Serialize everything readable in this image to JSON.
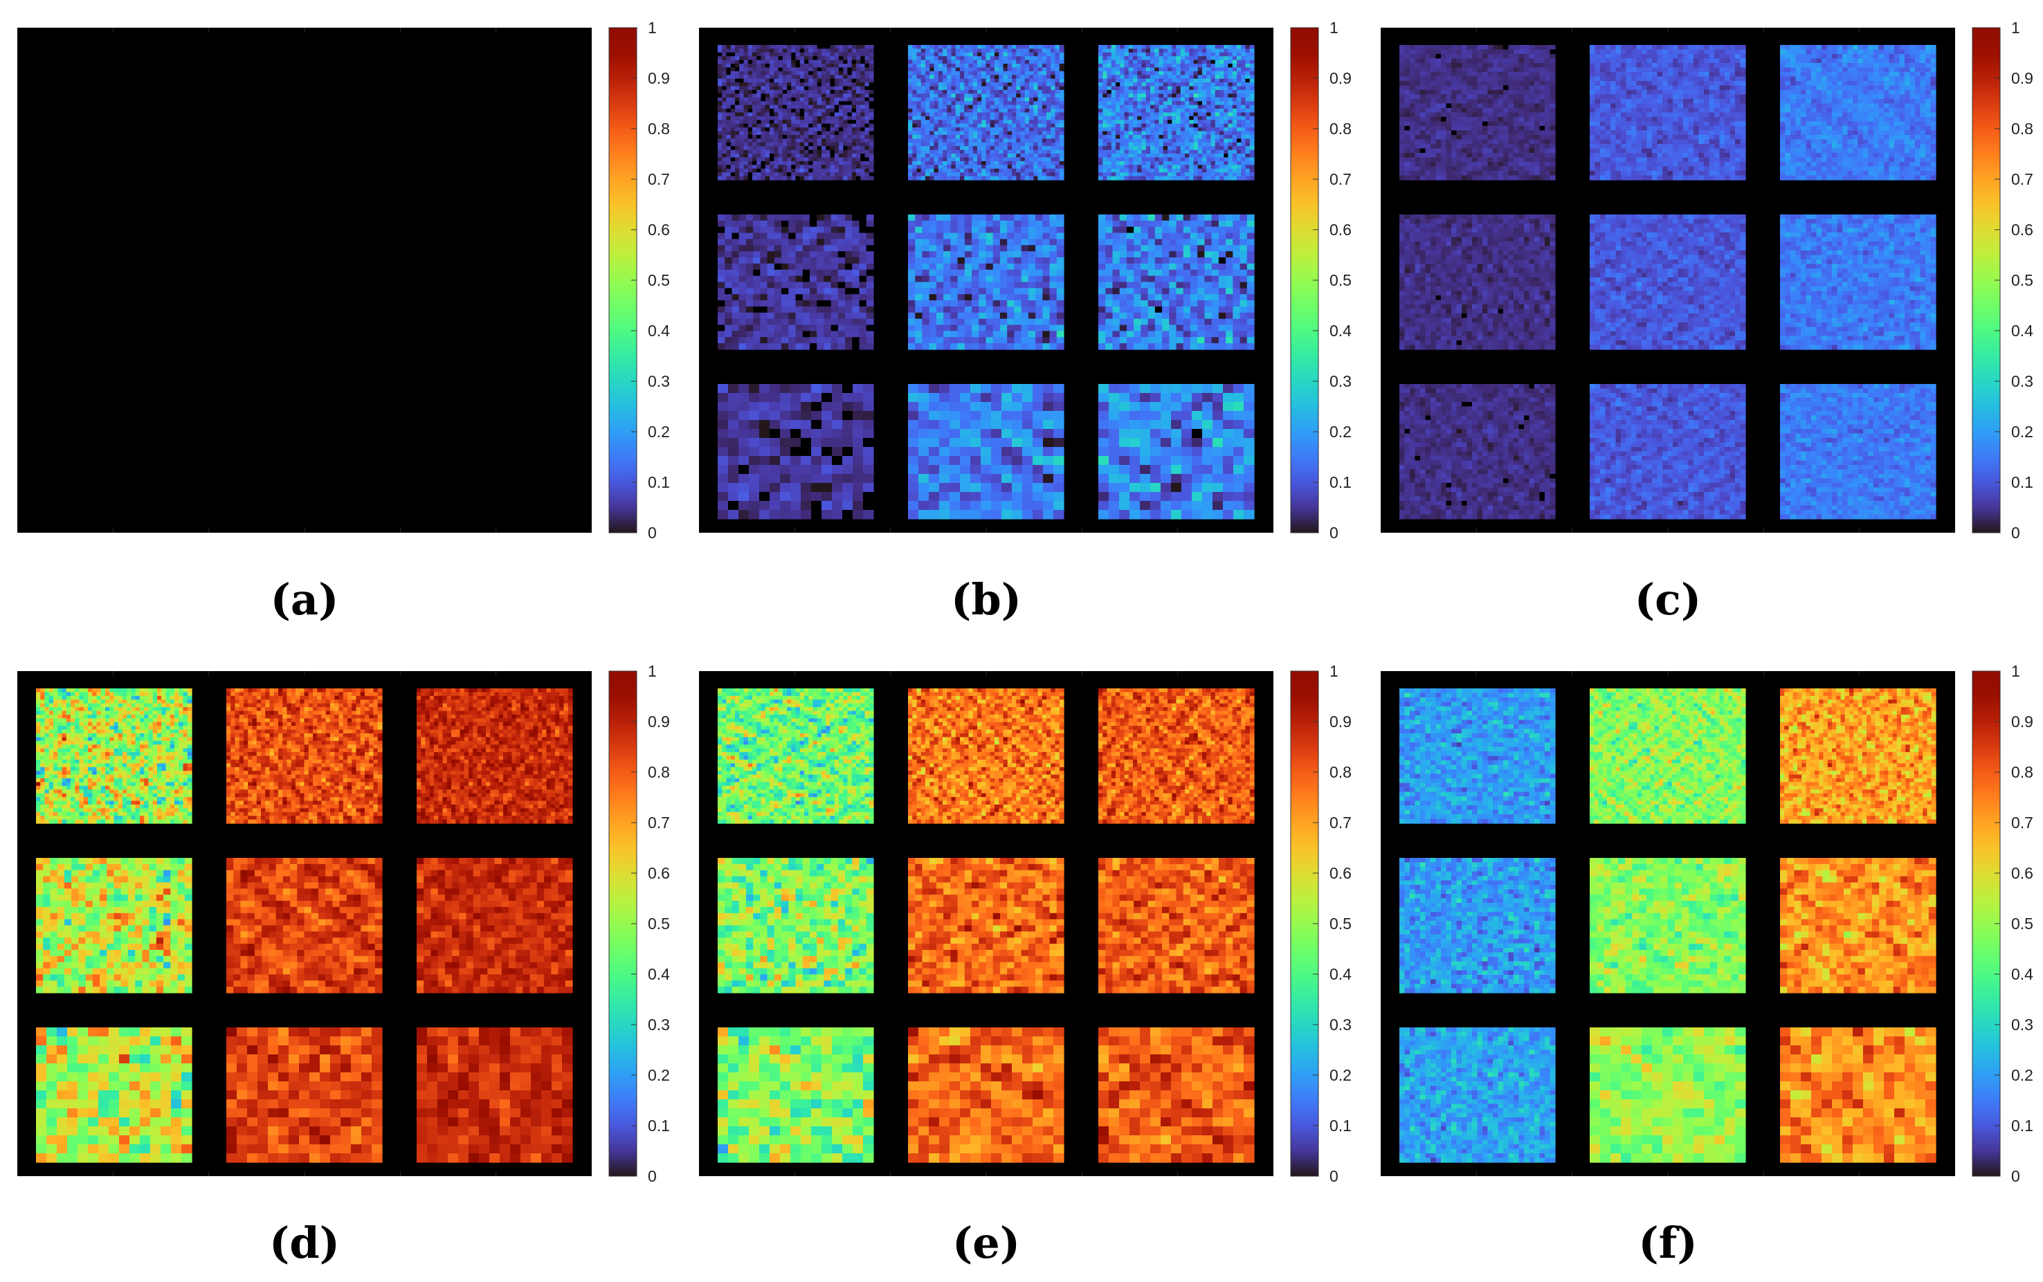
{
  "colorbar": {
    "ticks": [
      "0",
      "0.1",
      "0.2",
      "0.3",
      "0.4",
      "0.5",
      "0.6",
      "0.7",
      "0.8",
      "0.9",
      "1"
    ],
    "range": [
      0,
      1
    ],
    "colormap": "turbo"
  },
  "chart_data": [
    {
      "type": "heatmap",
      "caption": "(a)",
      "grid": false,
      "tiles": [],
      "colorbar_range": [
        0,
        1
      ]
    },
    {
      "type": "heatmap",
      "caption": "(b)",
      "grid": false,
      "tiles": [
        [
          {
            "mean": 0.04,
            "spread": 0.04,
            "texture": "speckle",
            "holes": 0.35
          },
          {
            "mean": 0.13,
            "spread": 0.1,
            "texture": "speckle",
            "holes": 0.0
          },
          {
            "mean": 0.15,
            "spread": 0.11,
            "texture": "speckle",
            "holes": 0.02
          }
        ],
        [
          {
            "mean": 0.05,
            "spread": 0.04,
            "texture": "blob",
            "holes": 0.3
          },
          {
            "mean": 0.14,
            "spread": 0.1,
            "texture": "blob",
            "holes": 0.0
          },
          {
            "mean": 0.15,
            "spread": 0.11,
            "texture": "blob",
            "holes": 0.02
          }
        ],
        [
          {
            "mean": 0.05,
            "spread": 0.04,
            "texture": "blob-large",
            "holes": 0.28
          },
          {
            "mean": 0.15,
            "spread": 0.1,
            "texture": "blob-large",
            "holes": 0.0
          },
          {
            "mean": 0.16,
            "spread": 0.12,
            "texture": "blob-large",
            "holes": 0.02
          }
        ]
      ],
      "colorbar_range": [
        0,
        1
      ]
    },
    {
      "type": "heatmap",
      "caption": "(c)",
      "grid": false,
      "tiles": [
        [
          {
            "mean": 0.04,
            "spread": 0.02,
            "texture": "fibrous",
            "holes": 0.04
          },
          {
            "mean": 0.1,
            "spread": 0.04,
            "texture": "fibrous",
            "holes": 0.0
          },
          {
            "mean": 0.15,
            "spread": 0.05,
            "texture": "fibrous",
            "holes": 0.0
          }
        ],
        [
          {
            "mean": 0.04,
            "spread": 0.02,
            "texture": "fibrous",
            "holes": 0.03
          },
          {
            "mean": 0.1,
            "spread": 0.04,
            "texture": "fibrous",
            "holes": 0.0
          },
          {
            "mean": 0.15,
            "spread": 0.05,
            "texture": "fibrous",
            "holes": 0.0
          }
        ],
        [
          {
            "mean": 0.04,
            "spread": 0.02,
            "texture": "fibrous",
            "holes": 0.04
          },
          {
            "mean": 0.1,
            "spread": 0.04,
            "texture": "fibrous",
            "holes": 0.0
          },
          {
            "mean": 0.15,
            "spread": 0.05,
            "texture": "fibrous",
            "holes": 0.0
          }
        ]
      ],
      "colorbar_range": [
        0,
        1
      ]
    },
    {
      "type": "heatmap",
      "caption": "(d)",
      "grid": false,
      "tiles": [
        [
          {
            "mean": 0.52,
            "spread": 0.22,
            "texture": "speckle",
            "holes": 0.0
          },
          {
            "mean": 0.82,
            "spread": 0.1,
            "texture": "speckle",
            "holes": 0.0
          },
          {
            "mean": 0.88,
            "spread": 0.08,
            "texture": "speckle",
            "holes": 0.0
          }
        ],
        [
          {
            "mean": 0.55,
            "spread": 0.2,
            "texture": "blob",
            "holes": 0.0
          },
          {
            "mean": 0.84,
            "spread": 0.09,
            "texture": "blob",
            "holes": 0.0
          },
          {
            "mean": 0.88,
            "spread": 0.07,
            "texture": "blob",
            "holes": 0.0
          }
        ],
        [
          {
            "mean": 0.55,
            "spread": 0.2,
            "texture": "blob-large",
            "holes": 0.0
          },
          {
            "mean": 0.84,
            "spread": 0.09,
            "texture": "blob-large",
            "holes": 0.0
          },
          {
            "mean": 0.88,
            "spread": 0.07,
            "texture": "blob-large",
            "holes": 0.0
          }
        ]
      ],
      "colorbar_range": [
        0,
        1
      ]
    },
    {
      "type": "heatmap",
      "caption": "(e)",
      "grid": false,
      "tiles": [
        [
          {
            "mean": 0.45,
            "spread": 0.18,
            "texture": "speckle",
            "holes": 0.0
          },
          {
            "mean": 0.76,
            "spread": 0.12,
            "texture": "speckle",
            "holes": 0.0
          },
          {
            "mean": 0.8,
            "spread": 0.11,
            "texture": "speckle",
            "holes": 0.0
          }
        ],
        [
          {
            "mean": 0.47,
            "spread": 0.18,
            "texture": "blob",
            "holes": 0.0
          },
          {
            "mean": 0.78,
            "spread": 0.11,
            "texture": "blob",
            "holes": 0.0
          },
          {
            "mean": 0.8,
            "spread": 0.1,
            "texture": "blob",
            "holes": 0.0
          }
        ],
        [
          {
            "mean": 0.47,
            "spread": 0.18,
            "texture": "blob-large",
            "holes": 0.0
          },
          {
            "mean": 0.78,
            "spread": 0.11,
            "texture": "blob-large",
            "holes": 0.0
          },
          {
            "mean": 0.8,
            "spread": 0.1,
            "texture": "blob-large",
            "holes": 0.0
          }
        ]
      ],
      "colorbar_range": [
        0,
        1
      ]
    },
    {
      "type": "heatmap",
      "caption": "(f)",
      "grid": false,
      "tiles": [
        [
          {
            "mean": 0.2,
            "spread": 0.08,
            "texture": "fibrous",
            "holes": 0.0
          },
          {
            "mean": 0.48,
            "spread": 0.12,
            "texture": "speckle",
            "holes": 0.0
          },
          {
            "mean": 0.7,
            "spread": 0.12,
            "texture": "speckle",
            "holes": 0.0
          }
        ],
        [
          {
            "mean": 0.2,
            "spread": 0.08,
            "texture": "fibrous",
            "holes": 0.0
          },
          {
            "mean": 0.48,
            "spread": 0.12,
            "texture": "blob",
            "holes": 0.0
          },
          {
            "mean": 0.72,
            "spread": 0.12,
            "texture": "blob",
            "holes": 0.0
          }
        ],
        [
          {
            "mean": 0.21,
            "spread": 0.08,
            "texture": "fibrous",
            "holes": 0.0
          },
          {
            "mean": 0.5,
            "spread": 0.12,
            "texture": "blob-large",
            "holes": 0.0
          },
          {
            "mean": 0.73,
            "spread": 0.12,
            "texture": "blob-large",
            "holes": 0.0
          }
        ]
      ],
      "colorbar_range": [
        0,
        1
      ]
    }
  ]
}
